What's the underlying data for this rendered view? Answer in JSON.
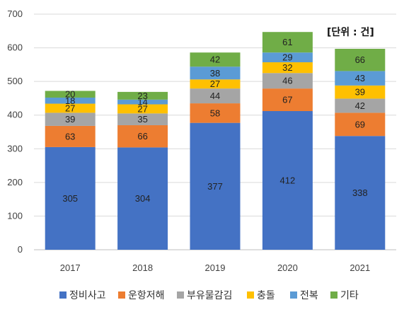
{
  "chart_data": {
    "type": "bar",
    "stacked": true,
    "unit_note": "[단위 : 건]",
    "categories": [
      "2017",
      "2018",
      "2019",
      "2020",
      "2021"
    ],
    "ylim": [
      0,
      700
    ],
    "yticks": [
      0,
      100,
      200,
      300,
      400,
      500,
      600,
      700
    ],
    "grid": true,
    "legend_position": "bottom",
    "series": [
      {
        "name": "정비사고",
        "color": "#4472C4",
        "values": [
          305,
          304,
          377,
          412,
          338
        ]
      },
      {
        "name": "운항저해",
        "color": "#ED7D31",
        "values": [
          63,
          66,
          58,
          67,
          69
        ]
      },
      {
        "name": "부유물감김",
        "color": "#A5A5A5",
        "values": [
          39,
          35,
          44,
          46,
          42
        ]
      },
      {
        "name": "충돌",
        "color": "#FFC000",
        "values": [
          27,
          27,
          27,
          32,
          39
        ]
      },
      {
        "name": "전복",
        "color": "#5B9BD5",
        "values": [
          18,
          14,
          38,
          29,
          43
        ]
      },
      {
        "name": "기타",
        "color": "#70AD47",
        "values": [
          20,
          23,
          42,
          61,
          66
        ]
      }
    ]
  }
}
